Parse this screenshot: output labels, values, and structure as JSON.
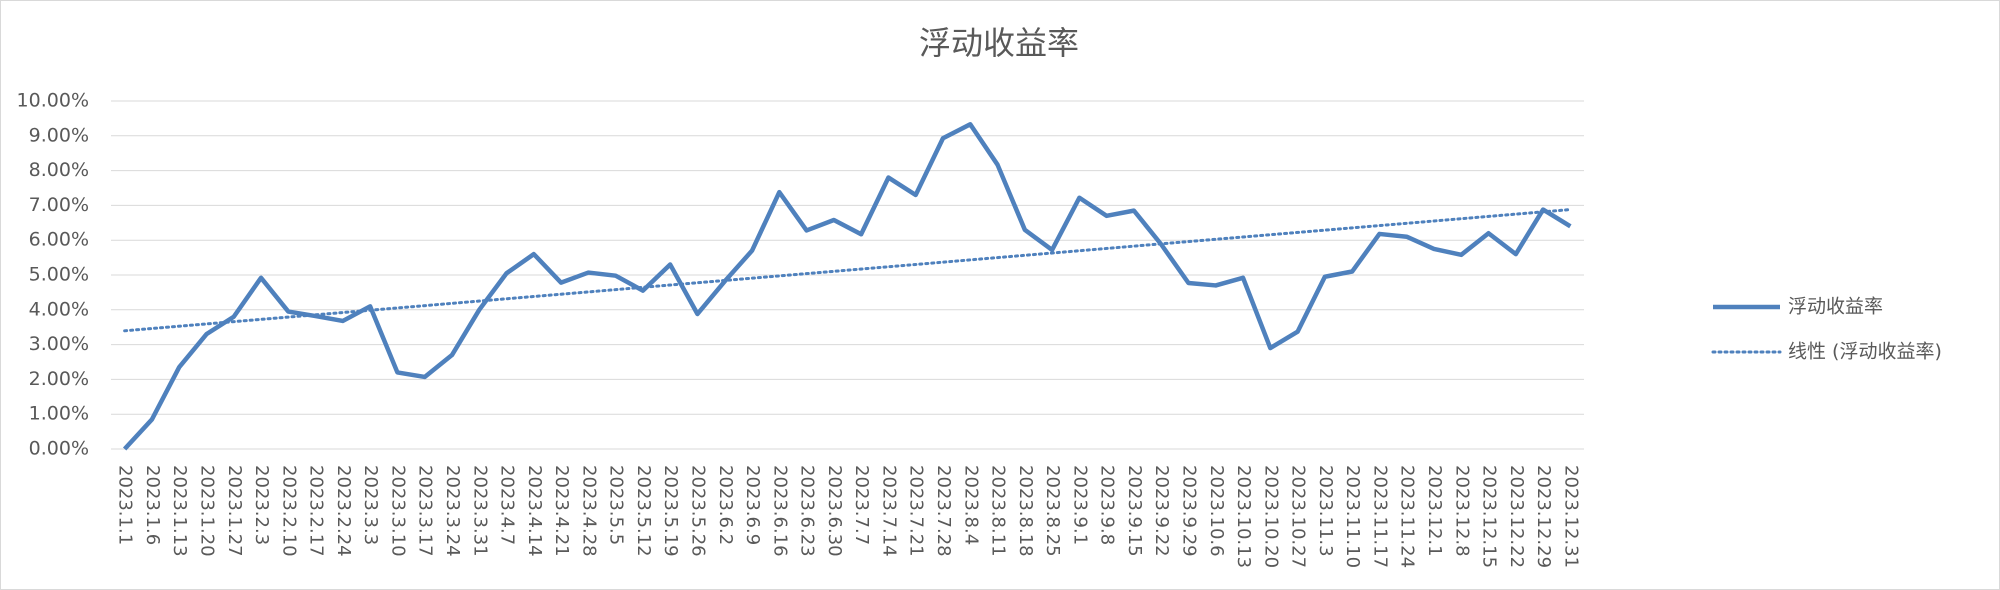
{
  "chart_data": {
    "type": "line",
    "title": "浮动收益率",
    "categories": [
      "2023.1.1",
      "2023.1.6",
      "2023.1.13",
      "2023.1.20",
      "2023.1.27",
      "2023.2.3",
      "2023.2.10",
      "2023.2.17",
      "2023.2.24",
      "2023.3.3",
      "2023.3.10",
      "2023.3.17",
      "2023.3.24",
      "2023.3.31",
      "2023.4.7",
      "2023.4.14",
      "2023.4.21",
      "2023.4.28",
      "2023.5.5",
      "2023.5.12",
      "2023.5.19",
      "2023.5.26",
      "2023.6.2",
      "2023.6.9",
      "2023.6.16",
      "2023.6.23",
      "2023.6.30",
      "2023.7.7",
      "2023.7.14",
      "2023.7.21",
      "2023.7.28",
      "2023.8.4",
      "2023.8.11",
      "2023.8.18",
      "2023.8.25",
      "2023.9.1",
      "2023.9.8",
      "2023.9.15",
      "2023.9.22",
      "2023.9.29",
      "2023.10.6",
      "2023.10.13",
      "2023.10.20",
      "2023.10.27",
      "2023.11.3",
      "2023.11.10",
      "2023.11.17",
      "2023.11.24",
      "2023.12.1",
      "2023.12.8",
      "2023.12.15",
      "2023.12.22",
      "2023.12.29",
      "2023.12.31"
    ],
    "series": [
      {
        "name": "浮动收益率",
        "color": "#4f81bd",
        "values": [
          0.0,
          0.85,
          2.35,
          3.3,
          3.8,
          4.92,
          3.95,
          3.82,
          3.68,
          4.1,
          2.2,
          2.07,
          2.7,
          4.0,
          5.05,
          5.6,
          4.78,
          5.07,
          4.98,
          4.55,
          5.3,
          3.88,
          4.82,
          5.7,
          7.38,
          6.28,
          6.58,
          6.17,
          7.8,
          7.3,
          8.93,
          9.33,
          8.17,
          6.3,
          5.72,
          7.22,
          6.7,
          6.85,
          5.88,
          4.77,
          4.7,
          4.92,
          2.9,
          3.37,
          4.95,
          5.1,
          6.18,
          6.1,
          5.75,
          5.58,
          6.2,
          5.6,
          6.88,
          6.4
        ]
      },
      {
        "name": "线性 (浮动收益率)",
        "color": "#4f81bd",
        "trendline": "linear"
      }
    ],
    "ylim": [
      0,
      10
    ],
    "yticks": [
      {
        "value": 0,
        "label": "0.00%"
      },
      {
        "value": 1,
        "label": "1.00%"
      },
      {
        "value": 2,
        "label": "2.00%"
      },
      {
        "value": 3,
        "label": "3.00%"
      },
      {
        "value": 4,
        "label": "4.00%"
      },
      {
        "value": 5,
        "label": "5.00%"
      },
      {
        "value": 6,
        "label": "6.00%"
      },
      {
        "value": 7,
        "label": "7.00%"
      },
      {
        "value": 8,
        "label": "8.00%"
      },
      {
        "value": 9,
        "label": "9.00%"
      },
      {
        "value": 10,
        "label": "10.00%"
      }
    ],
    "grid": true,
    "legend": "right"
  }
}
